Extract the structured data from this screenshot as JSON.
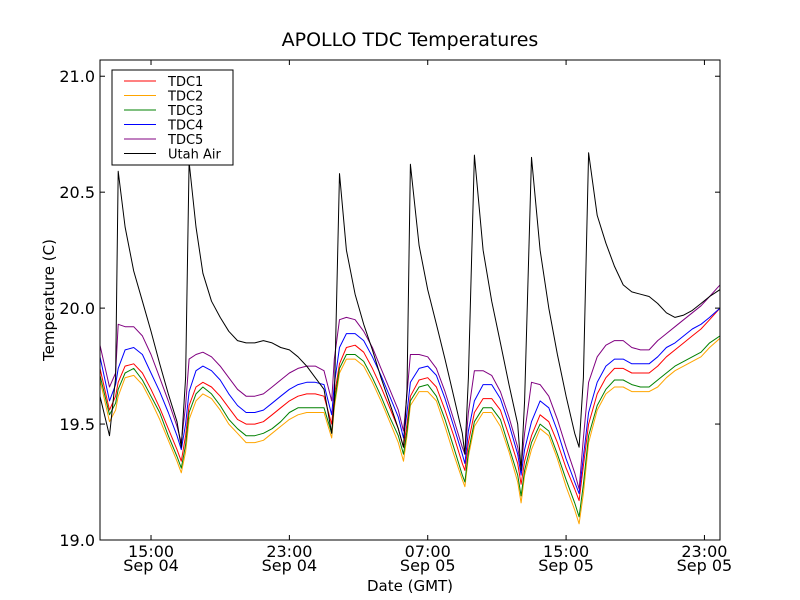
{
  "chart_data": {
    "type": "line",
    "title": "APOLLO TDC Temperatures",
    "xlabel": "Date (GMT)",
    "ylabel": "Temperature (C)",
    "x_units": "hours since Sep 04 00:00 GMT",
    "xlim": [
      12.05,
      47.9
    ],
    "ylim": [
      19.0,
      21.07
    ],
    "grid": false,
    "legend_position": "top-left",
    "yticks": [
      {
        "value": 19.0,
        "label": "19.0"
      },
      {
        "value": 19.5,
        "label": "19.5"
      },
      {
        "value": 20.0,
        "label": "20.0"
      },
      {
        "value": 20.5,
        "label": "20.5"
      },
      {
        "value": 21.0,
        "label": "21.0"
      }
    ],
    "xticks": [
      {
        "value": 15,
        "label": [
          "15:00",
          "Sep 04"
        ]
      },
      {
        "value": 23,
        "label": [
          "23:00",
          "Sep 04"
        ]
      },
      {
        "value": 31,
        "label": [
          "07:00",
          "Sep 05"
        ]
      },
      {
        "value": 39,
        "label": [
          "15:00",
          "Sep 05"
        ]
      },
      {
        "value": 47,
        "label": [
          "23:00",
          "Sep 05"
        ]
      }
    ],
    "x": [
      12.05,
      12.6,
      12.95,
      13.1,
      13.5,
      14.0,
      14.5,
      15.0,
      15.5,
      16.0,
      16.5,
      16.75,
      17.0,
      17.2,
      17.6,
      18.0,
      18.5,
      19.0,
      19.5,
      20.0,
      20.5,
      21.0,
      21.5,
      22.0,
      22.5,
      23.0,
      23.5,
      24.0,
      24.5,
      25.0,
      25.45,
      25.6,
      25.9,
      26.3,
      26.8,
      27.3,
      27.8,
      28.3,
      28.8,
      29.3,
      29.6,
      29.8,
      30.0,
      30.5,
      31.0,
      31.5,
      32.0,
      32.5,
      33.0,
      33.15,
      33.35,
      33.7,
      34.2,
      34.7,
      35.2,
      35.7,
      36.2,
      36.4,
      36.6,
      37.0,
      37.5,
      38.0,
      38.5,
      39.0,
      39.5,
      39.75,
      40.0,
      40.3,
      40.8,
      41.3,
      41.8,
      42.3,
      42.8,
      43.3,
      43.8,
      44.3,
      44.8,
      45.3,
      45.8,
      46.3,
      46.8,
      47.3,
      47.9
    ],
    "series": [
      {
        "name": "TDC1",
        "color": "#ff0000",
        "values": [
          19.74,
          19.56,
          19.62,
          19.68,
          19.75,
          19.76,
          19.72,
          19.65,
          19.57,
          19.48,
          19.39,
          19.34,
          19.45,
          19.58,
          19.66,
          19.68,
          19.66,
          19.62,
          19.57,
          19.52,
          19.5,
          19.5,
          19.51,
          19.54,
          19.57,
          19.6,
          19.62,
          19.63,
          19.63,
          19.62,
          19.5,
          19.62,
          19.76,
          19.83,
          19.84,
          19.81,
          19.74,
          19.66,
          19.57,
          19.48,
          19.4,
          19.5,
          19.62,
          19.69,
          19.7,
          19.66,
          19.56,
          19.45,
          19.33,
          19.3,
          19.42,
          19.55,
          19.61,
          19.61,
          19.56,
          19.45,
          19.33,
          19.24,
          19.34,
          19.45,
          19.54,
          19.51,
          19.42,
          19.31,
          19.22,
          19.17,
          19.32,
          19.5,
          19.63,
          19.7,
          19.74,
          19.74,
          19.72,
          19.72,
          19.72,
          19.75,
          19.79,
          19.82,
          19.85,
          19.88,
          19.91,
          19.95,
          20.0
        ]
      },
      {
        "name": "TDC2",
        "color": "#ffa500",
        "values": [
          19.69,
          19.51,
          19.56,
          19.62,
          19.7,
          19.71,
          19.67,
          19.6,
          19.52,
          19.43,
          19.34,
          19.29,
          19.38,
          19.52,
          19.6,
          19.63,
          19.61,
          19.56,
          19.5,
          19.46,
          19.42,
          19.42,
          19.43,
          19.46,
          19.49,
          19.52,
          19.54,
          19.55,
          19.55,
          19.55,
          19.44,
          19.57,
          19.72,
          19.78,
          19.78,
          19.75,
          19.68,
          19.6,
          19.51,
          19.42,
          19.34,
          19.45,
          19.58,
          19.64,
          19.64,
          19.6,
          19.49,
          19.37,
          19.26,
          19.23,
          19.36,
          19.49,
          19.55,
          19.55,
          19.49,
          19.38,
          19.25,
          19.16,
          19.28,
          19.39,
          19.48,
          19.45,
          19.35,
          19.23,
          19.13,
          19.07,
          19.2,
          19.42,
          19.56,
          19.63,
          19.66,
          19.66,
          19.64,
          19.64,
          19.64,
          19.66,
          19.7,
          19.73,
          19.75,
          19.77,
          19.79,
          19.83,
          19.87
        ]
      },
      {
        "name": "TDC3",
        "color": "#008000",
        "values": [
          19.71,
          19.54,
          19.59,
          19.65,
          19.72,
          19.74,
          19.69,
          19.62,
          19.55,
          19.45,
          19.36,
          19.31,
          19.41,
          19.55,
          19.63,
          19.66,
          19.63,
          19.58,
          19.52,
          19.48,
          19.45,
          19.45,
          19.46,
          19.48,
          19.51,
          19.55,
          19.57,
          19.57,
          19.57,
          19.57,
          19.46,
          19.59,
          19.74,
          19.8,
          19.8,
          19.77,
          19.7,
          19.62,
          19.53,
          19.45,
          19.37,
          19.47,
          19.6,
          19.66,
          19.67,
          19.62,
          19.52,
          19.4,
          19.28,
          19.25,
          19.38,
          19.51,
          19.57,
          19.57,
          19.52,
          19.4,
          19.28,
          19.19,
          19.3,
          19.42,
          19.5,
          19.47,
          19.37,
          19.26,
          19.16,
          19.1,
          19.24,
          19.45,
          19.58,
          19.65,
          19.69,
          19.69,
          19.67,
          19.66,
          19.66,
          19.69,
          19.72,
          19.75,
          19.77,
          19.79,
          19.81,
          19.85,
          19.88
        ]
      },
      {
        "name": "TDC4",
        "color": "#0000ff",
        "values": [
          19.79,
          19.6,
          19.67,
          19.74,
          19.82,
          19.83,
          19.8,
          19.72,
          19.64,
          19.55,
          19.45,
          19.39,
          19.5,
          19.64,
          19.73,
          19.75,
          19.73,
          19.69,
          19.63,
          19.58,
          19.55,
          19.55,
          19.56,
          19.59,
          19.62,
          19.65,
          19.67,
          19.68,
          19.68,
          19.67,
          19.54,
          19.67,
          19.83,
          19.89,
          19.89,
          19.86,
          19.79,
          19.71,
          19.62,
          19.53,
          19.44,
          19.55,
          19.68,
          19.74,
          19.75,
          19.71,
          19.61,
          19.49,
          19.37,
          19.33,
          19.47,
          19.6,
          19.67,
          19.67,
          19.61,
          19.5,
          19.37,
          19.28,
          19.39,
          19.51,
          19.6,
          19.57,
          19.47,
          19.35,
          19.25,
          19.2,
          19.36,
          19.55,
          19.68,
          19.75,
          19.78,
          19.78,
          19.76,
          19.76,
          19.76,
          19.79,
          19.83,
          19.85,
          19.88,
          19.91,
          19.93,
          19.96,
          20.0
        ]
      },
      {
        "name": "TDC5",
        "color": "#800080",
        "values": [
          19.84,
          19.66,
          19.72,
          19.93,
          19.92,
          19.92,
          19.88,
          19.8,
          19.7,
          19.6,
          19.49,
          19.42,
          19.58,
          19.78,
          19.8,
          19.81,
          19.79,
          19.75,
          19.7,
          19.65,
          19.62,
          19.62,
          19.63,
          19.66,
          19.69,
          19.72,
          19.74,
          19.75,
          19.75,
          19.73,
          19.6,
          19.78,
          19.95,
          19.96,
          19.95,
          19.9,
          19.83,
          19.74,
          19.65,
          19.56,
          19.47,
          19.63,
          19.8,
          19.8,
          19.79,
          19.74,
          19.64,
          19.52,
          19.4,
          19.37,
          19.55,
          19.73,
          19.73,
          19.71,
          19.64,
          19.53,
          19.4,
          19.31,
          19.46,
          19.68,
          19.67,
          19.62,
          19.52,
          19.4,
          19.29,
          19.22,
          19.44,
          19.68,
          19.79,
          19.84,
          19.86,
          19.86,
          19.83,
          19.82,
          19.82,
          19.86,
          19.89,
          19.92,
          19.95,
          19.98,
          20.01,
          20.05,
          20.1
        ]
      },
      {
        "name": "Utah Air",
        "color": "#000000",
        "values": [
          19.62,
          19.45,
          19.7,
          20.59,
          20.35,
          20.16,
          20.03,
          19.9,
          19.76,
          19.63,
          19.51,
          19.4,
          19.7,
          20.63,
          20.35,
          20.15,
          20.03,
          19.96,
          19.9,
          19.86,
          19.85,
          19.85,
          19.86,
          19.85,
          19.83,
          19.82,
          19.79,
          19.75,
          19.7,
          19.65,
          19.46,
          19.6,
          20.58,
          20.25,
          20.06,
          19.93,
          19.82,
          19.7,
          19.59,
          19.48,
          19.4,
          19.65,
          20.62,
          20.27,
          20.08,
          19.93,
          19.78,
          19.62,
          19.46,
          19.37,
          19.7,
          20.66,
          20.25,
          20.03,
          19.85,
          19.67,
          19.5,
          19.3,
          19.6,
          20.65,
          20.25,
          20.0,
          19.8,
          19.62,
          19.46,
          19.4,
          19.7,
          20.67,
          20.4,
          20.28,
          20.18,
          20.1,
          20.07,
          20.06,
          20.05,
          20.02,
          19.98,
          19.96,
          19.97,
          19.99,
          20.02,
          20.05,
          20.08
        ]
      }
    ]
  }
}
